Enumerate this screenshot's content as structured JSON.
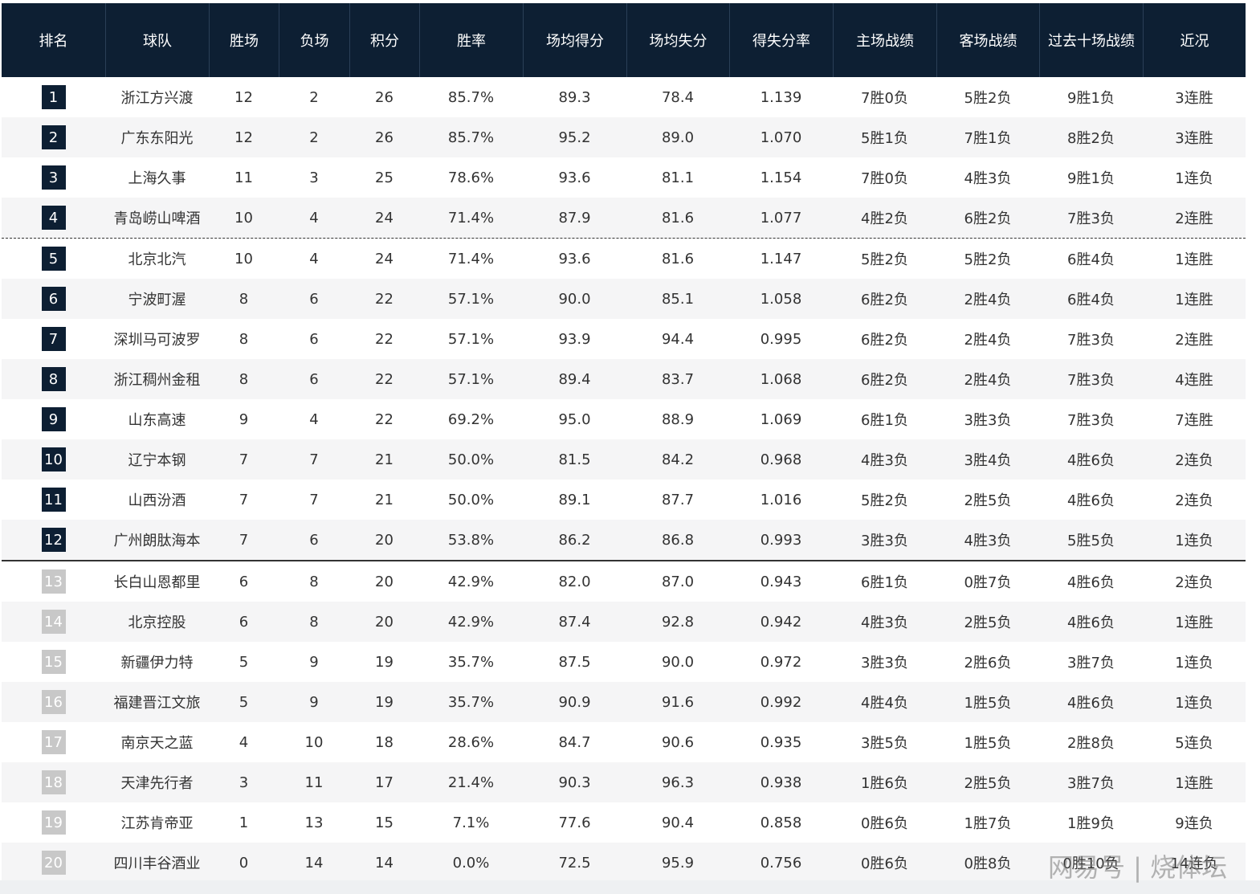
{
  "table": {
    "header": [
      "排名",
      "球队",
      "胜场",
      "负场",
      "积分",
      "胜率",
      "场均得分",
      "场均失分",
      "得失分率",
      "主场战绩",
      "客场战绩",
      "过去十场战绩",
      "近况"
    ],
    "rows": [
      [
        "1",
        "浙江方兴渡",
        "12",
        "2",
        "26",
        "85.7%",
        "89.3",
        "78.4",
        "1.139",
        "7胜0负",
        "5胜2负",
        "9胜1负",
        "3连胜"
      ],
      [
        "2",
        "广东东阳光",
        "12",
        "2",
        "26",
        "85.7%",
        "95.2",
        "89.0",
        "1.070",
        "5胜1负",
        "7胜1负",
        "8胜2负",
        "3连胜"
      ],
      [
        "3",
        "上海久事",
        "11",
        "3",
        "25",
        "78.6%",
        "93.6",
        "81.1",
        "1.154",
        "7胜0负",
        "4胜3负",
        "9胜1负",
        "1连负"
      ],
      [
        "4",
        "青岛崂山啤酒",
        "10",
        "4",
        "24",
        "71.4%",
        "87.9",
        "81.6",
        "1.077",
        "4胜2负",
        "6胜2负",
        "7胜3负",
        "2连胜"
      ],
      [
        "5",
        "北京北汽",
        "10",
        "4",
        "24",
        "71.4%",
        "93.6",
        "81.6",
        "1.147",
        "5胜2负",
        "5胜2负",
        "6胜4负",
        "1连胜"
      ],
      [
        "6",
        "宁波町渥",
        "8",
        "6",
        "22",
        "57.1%",
        "90.0",
        "85.1",
        "1.058",
        "6胜2负",
        "2胜4负",
        "6胜4负",
        "1连胜"
      ],
      [
        "7",
        "深圳马可波罗",
        "8",
        "6",
        "22",
        "57.1%",
        "93.9",
        "94.4",
        "0.995",
        "6胜2负",
        "2胜4负",
        "7胜3负",
        "2连胜"
      ],
      [
        "8",
        "浙江稠州金租",
        "8",
        "6",
        "22",
        "57.1%",
        "89.4",
        "83.7",
        "1.068",
        "6胜2负",
        "2胜4负",
        "7胜3负",
        "4连胜"
      ],
      [
        "9",
        "山东高速",
        "9",
        "4",
        "22",
        "69.2%",
        "95.0",
        "88.9",
        "1.069",
        "6胜1负",
        "3胜3负",
        "7胜3负",
        "7连胜"
      ],
      [
        "10",
        "辽宁本钢",
        "7",
        "7",
        "21",
        "50.0%",
        "81.5",
        "84.2",
        "0.968",
        "4胜3负",
        "3胜4负",
        "4胜6负",
        "2连负"
      ],
      [
        "11",
        "山西汾酒",
        "7",
        "7",
        "21",
        "50.0%",
        "89.1",
        "87.7",
        "1.016",
        "5胜2负",
        "2胜5负",
        "4胜6负",
        "2连负"
      ],
      [
        "12",
        "广州朗肽海本",
        "7",
        "6",
        "20",
        "53.8%",
        "86.2",
        "86.8",
        "0.993",
        "3胜3负",
        "4胜3负",
        "5胜5负",
        "1连负"
      ],
      [
        "13",
        "长白山恩都里",
        "6",
        "8",
        "20",
        "42.9%",
        "82.0",
        "87.0",
        "0.943",
        "6胜1负",
        "0胜7负",
        "4胜6负",
        "2连负"
      ],
      [
        "14",
        "北京控股",
        "6",
        "8",
        "20",
        "42.9%",
        "87.4",
        "92.8",
        "0.942",
        "4胜3负",
        "2胜5负",
        "4胜6负",
        "1连胜"
      ],
      [
        "15",
        "新疆伊力特",
        "5",
        "9",
        "19",
        "35.7%",
        "87.5",
        "90.0",
        "0.972",
        "3胜3负",
        "2胜6负",
        "3胜7负",
        "1连负"
      ],
      [
        "16",
        "福建晋江文旅",
        "5",
        "9",
        "19",
        "35.7%",
        "90.9",
        "91.6",
        "0.992",
        "4胜4负",
        "1胜5负",
        "4胜6负",
        "1连负"
      ],
      [
        "17",
        "南京天之蓝",
        "4",
        "10",
        "18",
        "28.6%",
        "84.7",
        "90.6",
        "0.935",
        "3胜5负",
        "1胜5负",
        "2胜8负",
        "5连负"
      ],
      [
        "18",
        "天津先行者",
        "3",
        "11",
        "17",
        "21.4%",
        "90.3",
        "96.3",
        "0.938",
        "1胜6负",
        "2胜5负",
        "3胜7负",
        "1连胜"
      ],
      [
        "19",
        "江苏肯帝亚",
        "1",
        "13",
        "15",
        "7.1%",
        "77.6",
        "90.4",
        "0.858",
        "0胜6负",
        "1胜7负",
        "1胜9负",
        "9连负"
      ],
      [
        "20",
        "四川丰谷酒业",
        "0",
        "14",
        "14",
        "0.0%",
        "72.5",
        "95.9",
        "0.756",
        "0胜6负",
        "0胜8负",
        "0胜10负",
        "14连负"
      ]
    ]
  },
  "watermark": "网易号 | 烧体坛"
}
